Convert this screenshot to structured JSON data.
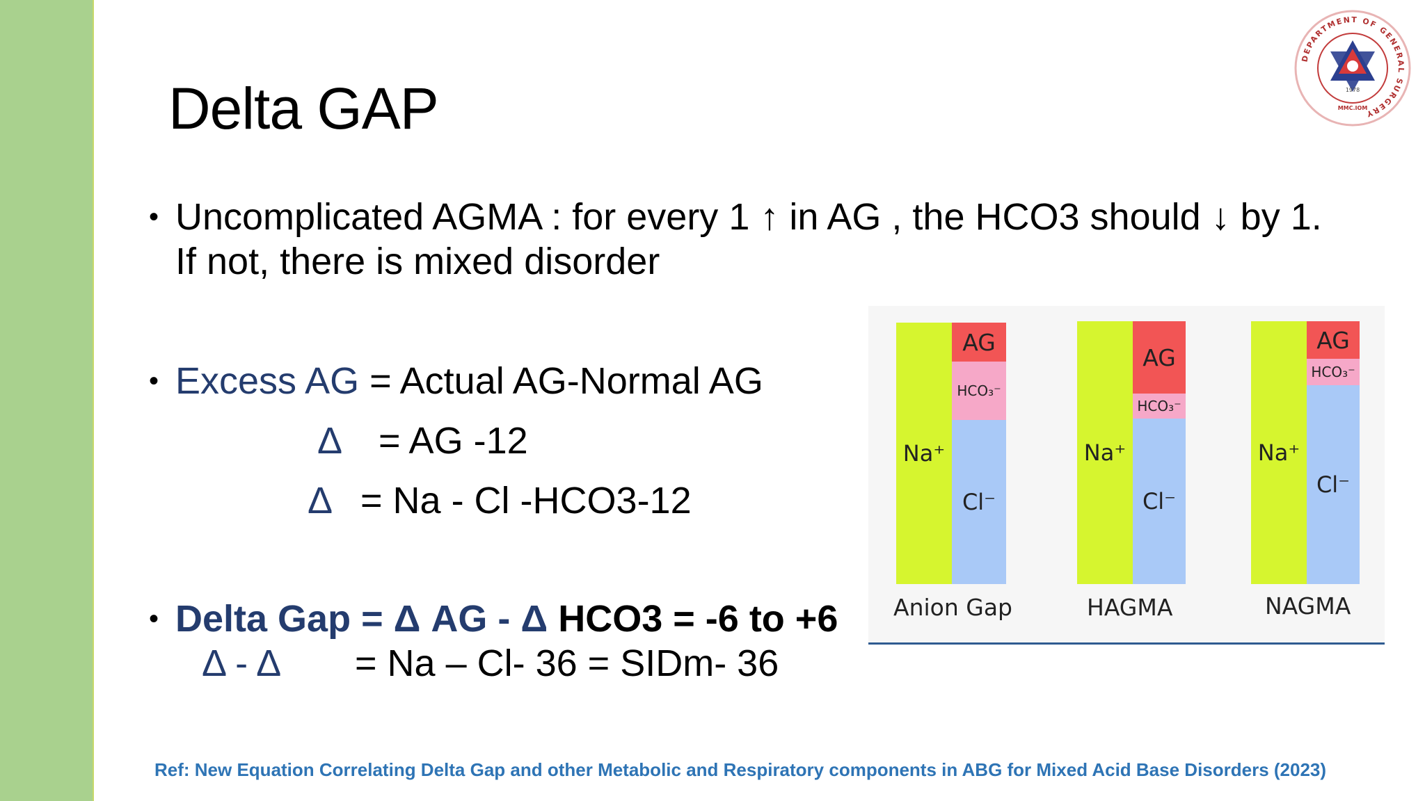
{
  "slide": {
    "title": "Delta GAP",
    "bullet1": {
      "line1": "Uncomplicated AGMA : for every 1 ↑ in AG , the HCO3 should ↓ by 1.",
      "line2": "If not, there is mixed disorder"
    },
    "bullet2": {
      "term": "Excess AG",
      "definition": " = Actual AG-Normal AG",
      "eq1_symbol": "Δ",
      "eq1_rhs": "= AG -12",
      "eq2_symbol": "Δ",
      "eq2_rhs": "= Na - Cl -HCO3-12"
    },
    "bullet3": {
      "term": "Delta Gap = Δ AG - Δ ",
      "rest": "HCO3  =  -6 to +6",
      "eq_lhs": "Δ - Δ",
      "eq_rhs": "= Na – Cl- 36 =  SIDm- 36"
    },
    "reference": "Ref: New Equation Correlating Delta Gap and other Metabolic and Respiratory components in ABG for Mixed Acid Base Disorders (2023)"
  },
  "logo": {
    "ring_text": "DEPARTMENT OF GENERAL SURGERY",
    "year": "1978",
    "subtext": "MMC.IOM"
  },
  "figure": {
    "columns": [
      {
        "caption": "Anion Gap",
        "na": "Na⁺",
        "ag": "AG",
        "hco3": "HCO₃⁻",
        "cl": "Cl⁻"
      },
      {
        "caption": "HAGMA",
        "na": "Na⁺",
        "ag": "AG",
        "hco3": "HCO₃⁻",
        "cl": "Cl⁻"
      },
      {
        "caption": "NAGMA",
        "na": "Na⁺",
        "ag": "AG",
        "hco3": "HCO₃⁻",
        "cl": "Cl⁻"
      }
    ]
  }
}
